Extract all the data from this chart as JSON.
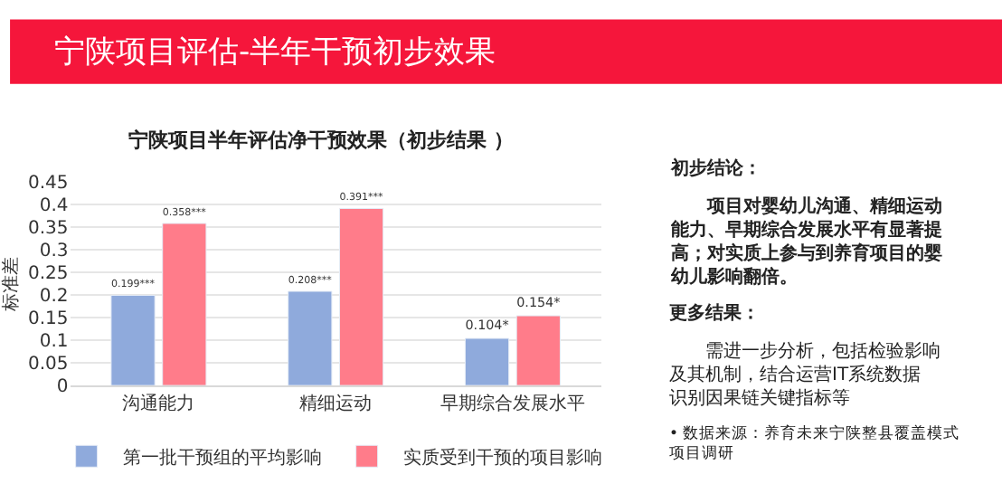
{
  "chart_data": [
    {
      "type": "bar",
      "title": "宁陕项目评估-半年干预初步效果",
      "subtitle": "宁陕项目半年评估净干预效果（初步结果 ）",
      "ylabel": "标准差",
      "categories": [
        "沟通能力",
        "精细运动",
        "早期综合发展水平"
      ],
      "series": [
        {
          "name": "第一批干预组的平均影响",
          "color": "#8faadc",
          "values": [
            0.199,
            0.208,
            0.104
          ],
          "value_labels": [
            "0.199***",
            "0.208***",
            "0.104*"
          ]
        },
        {
          "name": "实质受到干预的项目影响",
          "color": "#ff7c8a",
          "values": [
            0.358,
            0.391,
            0.154
          ],
          "value_labels": [
            "0.358***",
            "0.391***",
            "0.154*"
          ]
        }
      ],
      "ylim": [
        0,
        0.45
      ],
      "yticks": [
        0,
        0.05,
        0.1,
        0.15,
        0.2,
        0.25,
        0.3,
        0.35,
        0.4,
        0.45
      ],
      "grid": "y",
      "legend": "bottom"
    },
    {
      "type": "other",
      "annotations": [
        "初步结论：",
        "项目对婴幼儿沟通、精细运动能力、早期综合发展水平有显著提高；对实质上参与到养育项目的婴幼儿影响翻倍。",
        "更多结果：",
        "需进一步分析，包括检验影响及其机制，结合运营IT系统数据识别因果链关键指标等",
        "• 数据来源：养育未来宁陕整县覆盖模式项目调研"
      ]
    }
  ]
}
